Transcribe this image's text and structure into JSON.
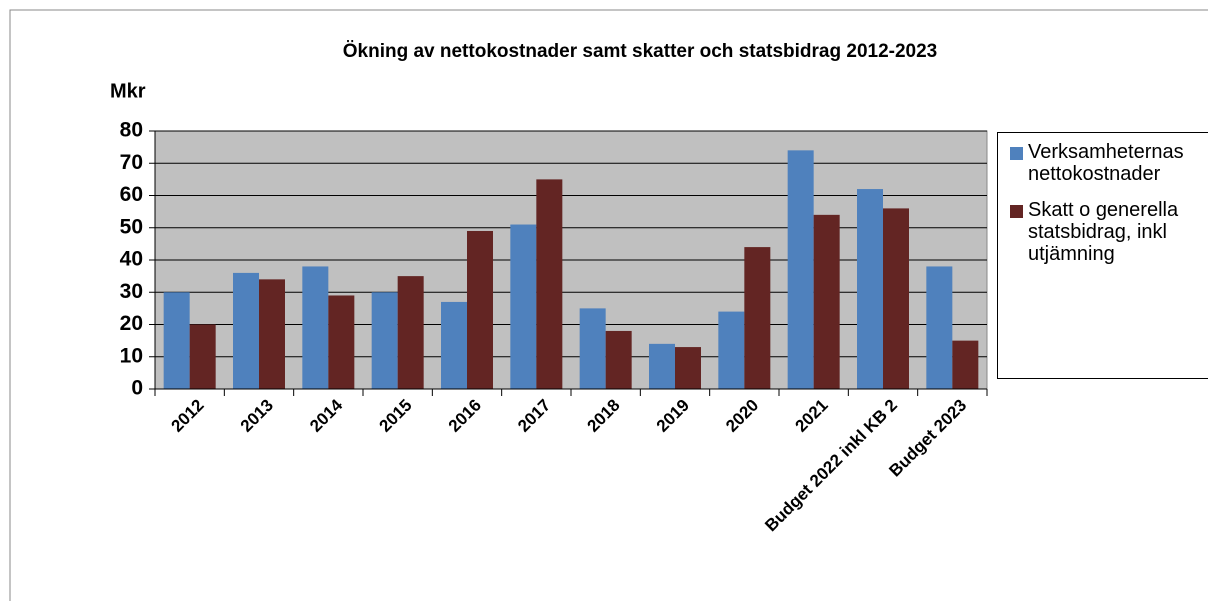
{
  "chart_data": {
    "type": "bar",
    "title": "Ökning av nettokostnader samt skatter och statsbidrag 2012-2023",
    "y_label": "Mkr",
    "categories": [
      "2012",
      "2013",
      "2014",
      "2015",
      "2016",
      "2017",
      "2018",
      "2019",
      "2020",
      "2021",
      "Budget 2022 inkl KB 2",
      "Budget 2023"
    ],
    "series": [
      {
        "name": "Verksamheternas nettokostnader",
        "color": "#4f81bd",
        "values": [
          30,
          36,
          38,
          30,
          27,
          51,
          25,
          14,
          24,
          74,
          62,
          38
        ]
      },
      {
        "name": "Skatt o generella statsbidrag, inkl utjämning",
        "color": "#632523",
        "values": [
          20,
          34,
          29,
          35,
          49,
          65,
          18,
          13,
          44,
          54,
          56,
          15
        ]
      }
    ],
    "ylim": [
      0,
      80
    ],
    "yticks": [
      0,
      10,
      20,
      30,
      40,
      50,
      60,
      70,
      80
    ],
    "grid": true,
    "legend": "right"
  }
}
